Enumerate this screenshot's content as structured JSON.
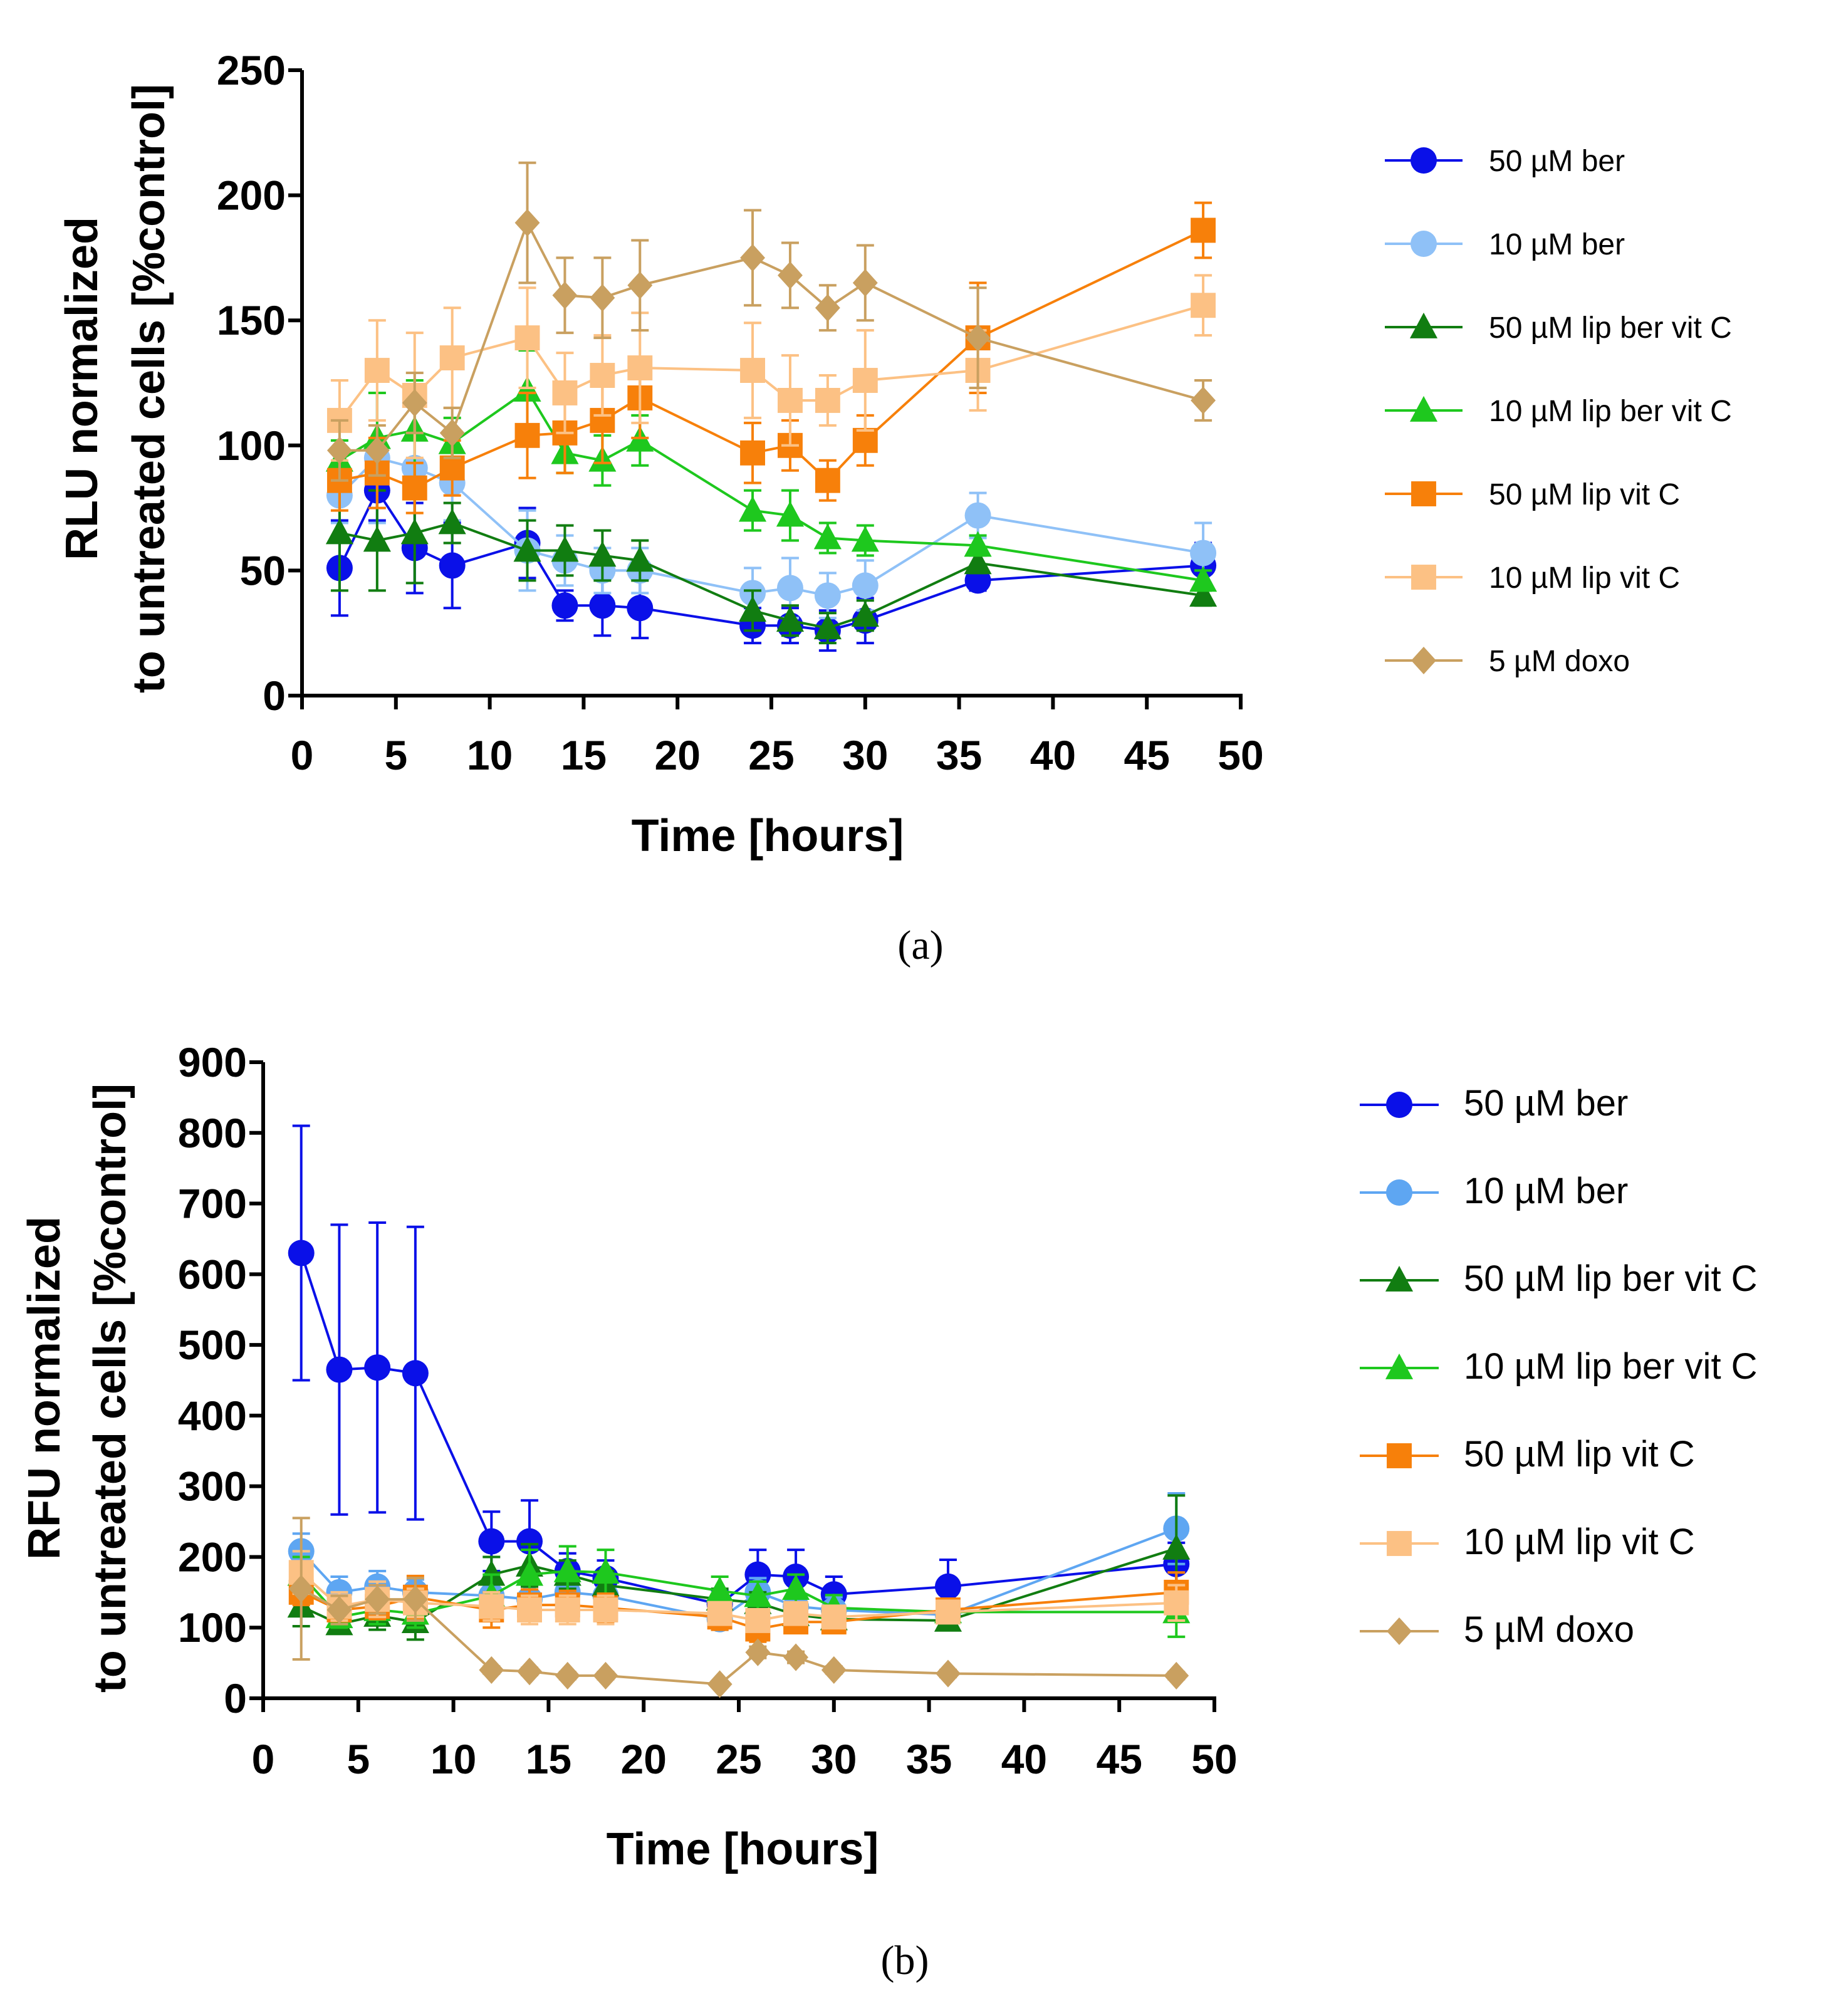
{
  "chart_data": [
    {
      "type": "line",
      "panel_label": "(a)",
      "xlabel": "Time [hours]",
      "ylabel_lines": [
        "RLU normalized",
        "to untreated cells [%control]"
      ],
      "xlim": [
        0,
        50
      ],
      "ylim": [
        0,
        250
      ],
      "xticks": [
        "0",
        "5",
        "10",
        "15",
        "20",
        "25",
        "30",
        "35",
        "40",
        "45",
        "50"
      ],
      "yticks": [
        "0",
        "50",
        "100",
        "150",
        "200",
        "250"
      ],
      "grid": false,
      "legend_position": "right",
      "x": [
        2,
        4,
        6,
        8,
        12,
        14,
        16,
        18,
        24,
        26,
        28,
        30,
        36,
        48
      ],
      "series": [
        {
          "name": "50 µM ber",
          "color": "#0a10e8",
          "marker": "circle",
          "values": [
            51,
            82,
            59,
            52,
            61,
            36,
            36,
            35,
            28,
            28,
            26,
            30,
            46,
            52
          ],
          "errors": [
            19,
            12,
            18,
            17,
            14,
            6,
            12,
            12,
            7,
            7,
            8,
            9,
            4,
            9
          ]
        },
        {
          "name": "10 µM ber",
          "color": "#8fc1f7",
          "marker": "circle",
          "values": [
            80,
            95,
            91,
            85,
            58,
            54,
            50,
            50,
            41,
            43,
            40,
            44,
            72,
            57
          ],
          "errors": [
            11,
            26,
            27,
            15,
            16,
            10,
            9,
            9,
            10,
            12,
            9,
            10,
            9,
            12
          ]
        },
        {
          "name": "50 µM lip ber vit C",
          "color": "#117d11",
          "marker": "triangle",
          "values": [
            65,
            62,
            65,
            69,
            58,
            58,
            56,
            54,
            34,
            30,
            27,
            32,
            53,
            40
          ],
          "errors": [
            23,
            20,
            20,
            8,
            12,
            10,
            10,
            8,
            8,
            6,
            6,
            6,
            4,
            4
          ]
        },
        {
          "name": "10 µM lip ber vit C",
          "color": "#1ec81e",
          "marker": "triangle",
          "values": [
            94,
            103,
            106,
            101,
            122,
            97,
            94,
            102,
            74,
            72,
            63,
            62,
            60,
            46
          ],
          "errors": [
            8,
            18,
            20,
            10,
            16,
            8,
            10,
            10,
            8,
            10,
            6,
            6,
            4,
            4
          ]
        },
        {
          "name": "50 µM lip vit C",
          "color": "#f7800a",
          "marker": "square",
          "values": [
            86,
            89,
            83,
            91,
            104,
            105,
            110,
            119,
            97,
            100,
            86,
            102,
            143,
            186
          ],
          "errors": [
            12,
            14,
            10,
            11,
            17,
            16,
            17,
            16,
            12,
            10,
            8,
            10,
            22,
            11
          ]
        },
        {
          "name": "10 µM lip vit C",
          "color": "#fcc184",
          "marker": "square",
          "values": [
            110,
            130,
            120,
            135,
            143,
            121,
            128,
            131,
            130,
            118,
            118,
            126,
            130,
            156
          ],
          "errors": [
            16,
            20,
            25,
            20,
            20,
            16,
            16,
            22,
            19,
            18,
            10,
            20,
            16,
            12
          ]
        },
        {
          "name": "5 µM doxo",
          "color": "#c9a060",
          "marker": "diamond",
          "values": [
            98,
            98,
            117,
            105,
            189,
            160,
            159,
            164,
            175,
            168,
            155,
            165,
            143,
            118
          ],
          "errors": [
            12,
            10,
            12,
            10,
            24,
            15,
            16,
            18,
            19,
            13,
            9,
            15,
            20,
            8
          ]
        }
      ]
    },
    {
      "type": "line",
      "panel_label": "(b)",
      "xlabel": "Time [hours]",
      "ylabel_lines": [
        "RFU normalized",
        "to untreated cells [%control]"
      ],
      "xlim": [
        0,
        50
      ],
      "ylim": [
        0,
        900
      ],
      "xticks": [
        "0",
        "5",
        "10",
        "15",
        "20",
        "25",
        "30",
        "35",
        "40",
        "45",
        "50"
      ],
      "yticks": [
        "0",
        "100",
        "200",
        "300",
        "400",
        "500",
        "600",
        "700",
        "800",
        "900"
      ],
      "grid": false,
      "legend_position": "right",
      "x": [
        2,
        4,
        6,
        8,
        12,
        14,
        16,
        18,
        24,
        26,
        28,
        30,
        36,
        48
      ],
      "series": [
        {
          "name": "50 µM ber",
          "color": "#0a10e8",
          "marker": "circle",
          "values": [
            630,
            465,
            468,
            460,
            222,
            222,
            180,
            170,
            133,
            175,
            172,
            147,
            158,
            190
          ],
          "errors": [
            180,
            205,
            205,
            207,
            42,
            58,
            25,
            25,
            20,
            35,
            38,
            25,
            38,
            30
          ]
        },
        {
          "name": "10 µM ber",
          "color": "#5ea6f2",
          "marker": "circle",
          "values": [
            208,
            150,
            158,
            150,
            145,
            140,
            150,
            145,
            112,
            150,
            130,
            125,
            118,
            240
          ],
          "errors": [
            25,
            22,
            22,
            18,
            20,
            20,
            20,
            20,
            15,
            20,
            18,
            18,
            15,
            50
          ]
        },
        {
          "name": "50 µM lip ber vit C",
          "color": "#117d11",
          "marker": "triangle",
          "values": [
            130,
            105,
            117,
            108,
            175,
            188,
            175,
            160,
            140,
            135,
            118,
            112,
            110,
            212
          ],
          "errors": [
            28,
            12,
            20,
            25,
            25,
            30,
            20,
            20,
            15,
            15,
            15,
            12,
            12,
            75
          ]
        },
        {
          "name": "10 µM lip ber vit C",
          "color": "#1ec81e",
          "marker": "triangle",
          "values": [
            175,
            115,
            125,
            120,
            145,
            175,
            180,
            178,
            152,
            145,
            155,
            128,
            122,
            122
          ],
          "errors": [
            25,
            15,
            20,
            20,
            30,
            35,
            35,
            32,
            20,
            20,
            20,
            18,
            15,
            35
          ]
        },
        {
          "name": "50 µM lip vit C",
          "color": "#f7800a",
          "marker": "square",
          "values": [
            150,
            125,
            130,
            143,
            125,
            132,
            132,
            128,
            115,
            98,
            108,
            108,
            125,
            150
          ],
          "errors": [
            18,
            15,
            18,
            30,
            25,
            22,
            20,
            20,
            18,
            18,
            15,
            12,
            15,
            28
          ]
        },
        {
          "name": "10 µM lip vit C",
          "color": "#fcc184",
          "marker": "square",
          "values": [
            178,
            130,
            140,
            135,
            130,
            125,
            125,
            125,
            120,
            110,
            120,
            115,
            122,
            135
          ],
          "errors": [
            30,
            20,
            25,
            20,
            20,
            20,
            20,
            20,
            15,
            15,
            15,
            15,
            15,
            25
          ]
        },
        {
          "name": "5 µM doxo",
          "color": "#c9a060",
          "marker": "diamond",
          "values": [
            155,
            125,
            140,
            140,
            40,
            38,
            32,
            32,
            20,
            65,
            58,
            40,
            35,
            32
          ],
          "errors": [
            100,
            20,
            20,
            30,
            5,
            5,
            5,
            5,
            4,
            8,
            8,
            5,
            5,
            5
          ]
        }
      ]
    }
  ]
}
